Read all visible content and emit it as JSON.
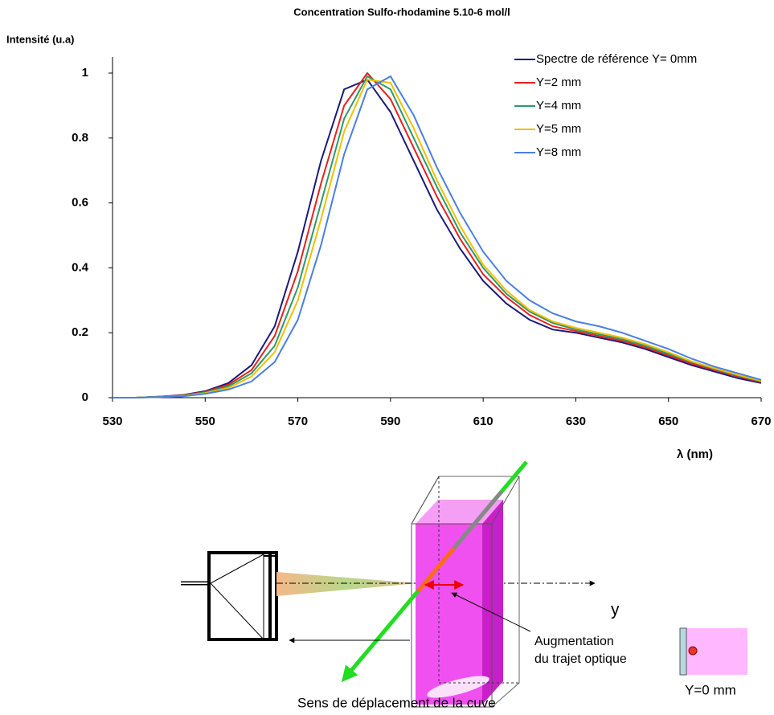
{
  "chart_data": {
    "type": "line",
    "title": "Concentration Sulfo-rhodamine  5.10-6 mol/l",
    "y_label": "Intensité (u.a)",
    "x_label": "λ  (nm)",
    "x": [
      530,
      535,
      540,
      545,
      550,
      555,
      560,
      565,
      570,
      575,
      580,
      585,
      590,
      595,
      600,
      605,
      610,
      615,
      620,
      625,
      630,
      635,
      640,
      645,
      650,
      655,
      660,
      665,
      670
    ],
    "series": [
      {
        "name": "Spectre de référence Y= 0mm",
        "color": "#1a1a7a",
        "values": [
          0,
          0,
          0.003,
          0.008,
          0.02,
          0.045,
          0.1,
          0.22,
          0.45,
          0.73,
          0.95,
          0.98,
          0.88,
          0.73,
          0.58,
          0.46,
          0.36,
          0.29,
          0.24,
          0.21,
          0.2,
          0.185,
          0.17,
          0.15,
          0.125,
          0.1,
          0.08,
          0.06,
          0.045
        ]
      },
      {
        "name": "Y=2 mm",
        "color": "#e8201e",
        "values": [
          0,
          0,
          0.003,
          0.007,
          0.018,
          0.04,
          0.085,
          0.19,
          0.39,
          0.66,
          0.9,
          1.0,
          0.92,
          0.77,
          0.62,
          0.49,
          0.38,
          0.31,
          0.255,
          0.22,
          0.205,
          0.19,
          0.175,
          0.155,
          0.13,
          0.105,
          0.085,
          0.065,
          0.048
        ]
      },
      {
        "name": "Y=4 mm",
        "color": "#2e9a6a",
        "values": [
          0,
          0,
          0.003,
          0.006,
          0.016,
          0.035,
          0.075,
          0.16,
          0.34,
          0.6,
          0.86,
          0.99,
          0.95,
          0.8,
          0.65,
          0.51,
          0.4,
          0.32,
          0.265,
          0.23,
          0.21,
          0.195,
          0.18,
          0.16,
          0.135,
          0.11,
          0.088,
          0.068,
          0.05
        ]
      },
      {
        "name": "Y=5 mm",
        "color": "#f0c000",
        "values": [
          0,
          0,
          0.002,
          0.005,
          0.014,
          0.03,
          0.065,
          0.14,
          0.3,
          0.55,
          0.82,
          0.98,
          0.97,
          0.83,
          0.67,
          0.53,
          0.41,
          0.33,
          0.27,
          0.235,
          0.215,
          0.2,
          0.185,
          0.165,
          0.14,
          0.112,
          0.09,
          0.07,
          0.052
        ]
      },
      {
        "name": "Y=8 mm",
        "color": "#4a7fe0",
        "values": [
          0,
          0,
          0.002,
          0.004,
          0.012,
          0.025,
          0.05,
          0.11,
          0.24,
          0.47,
          0.75,
          0.95,
          0.99,
          0.87,
          0.71,
          0.57,
          0.45,
          0.36,
          0.3,
          0.26,
          0.235,
          0.22,
          0.2,
          0.175,
          0.15,
          0.12,
          0.095,
          0.075,
          0.055
        ]
      }
    ],
    "xlim": [
      530,
      670
    ],
    "xticks": [
      530,
      550,
      570,
      590,
      610,
      630,
      650,
      670
    ],
    "ylim": [
      0,
      1
    ],
    "yticks": [
      0,
      0.2,
      0.4,
      0.6,
      0.8,
      1
    ],
    "grid": false,
    "legend": "top-right"
  },
  "diagram": {
    "axis_label": "y",
    "annotation_line1": "Augmentation",
    "annotation_line2": "du trajet optique",
    "inset_label": "Y=0 mm",
    "caption": "Sens de déplacement de la cuve"
  }
}
